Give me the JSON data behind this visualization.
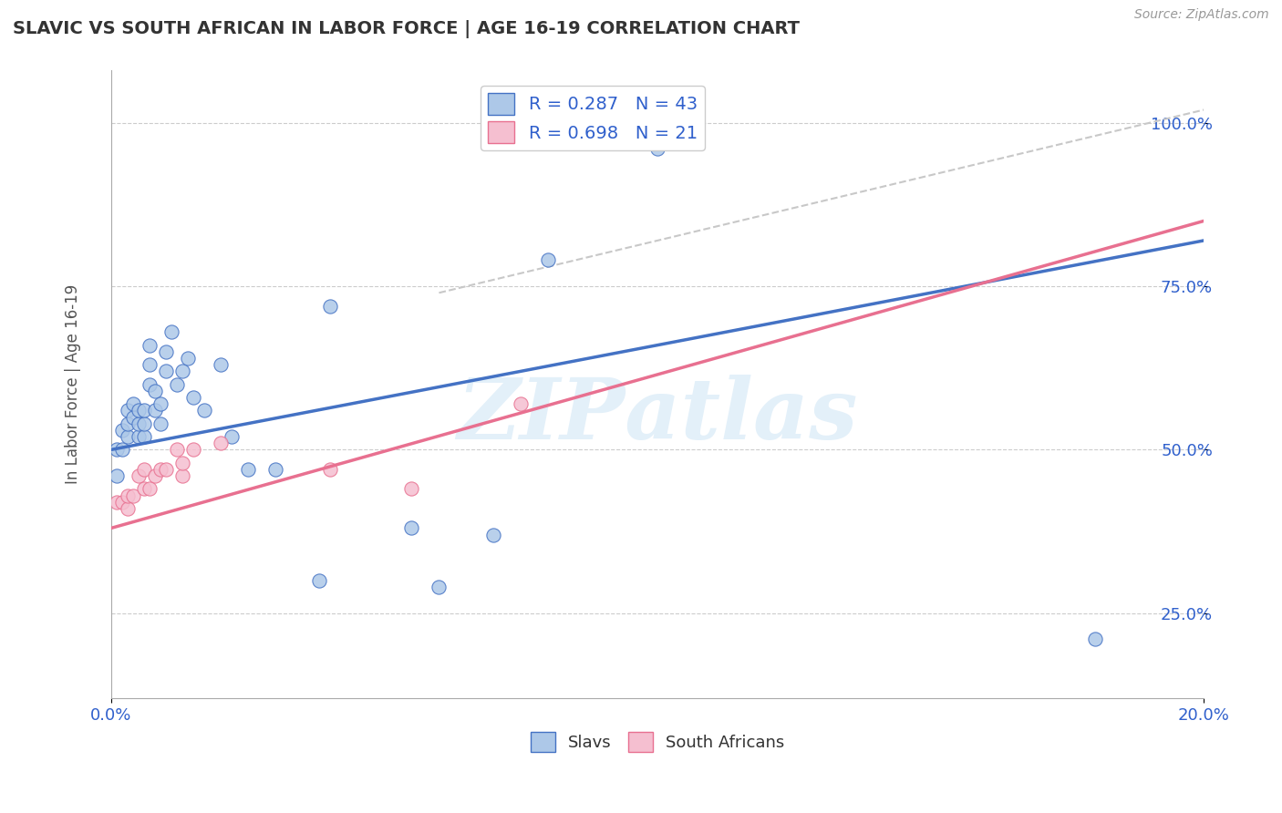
{
  "title": "SLAVIC VS SOUTH AFRICAN IN LABOR FORCE | AGE 16-19 CORRELATION CHART",
  "source": "Source: ZipAtlas.com",
  "xlabel": "",
  "ylabel": "In Labor Force | Age 16-19",
  "xlim": [
    0.0,
    0.2
  ],
  "ylim": [
    0.12,
    1.08
  ],
  "x_ticks": [
    0.0,
    0.2
  ],
  "x_tick_labels": [
    "0.0%",
    "20.0%"
  ],
  "y_ticks": [
    0.25,
    0.5,
    0.75,
    1.0
  ],
  "y_tick_labels": [
    "25.0%",
    "50.0%",
    "75.0%",
    "100.0%"
  ],
  "slavs_R": 0.287,
  "slavs_N": 43,
  "south_african_R": 0.698,
  "south_african_N": 21,
  "slavs_color": "#adc8e8",
  "south_african_color": "#f5bfd0",
  "slavs_line_color": "#4472c4",
  "south_african_line_color": "#e87090",
  "legend_text_color": "#3060cc",
  "background_color": "#ffffff",
  "slavs_x": [
    0.001,
    0.001,
    0.002,
    0.002,
    0.003,
    0.003,
    0.003,
    0.004,
    0.004,
    0.005,
    0.005,
    0.005,
    0.006,
    0.006,
    0.006,
    0.007,
    0.007,
    0.007,
    0.008,
    0.008,
    0.009,
    0.009,
    0.01,
    0.01,
    0.011,
    0.012,
    0.013,
    0.014,
    0.015,
    0.017,
    0.02,
    0.022,
    0.025,
    0.03,
    0.038,
    0.04,
    0.055,
    0.06,
    0.07,
    0.08,
    0.095,
    0.1,
    0.18
  ],
  "slavs_y": [
    0.46,
    0.5,
    0.5,
    0.53,
    0.52,
    0.54,
    0.56,
    0.55,
    0.57,
    0.52,
    0.54,
    0.56,
    0.52,
    0.54,
    0.56,
    0.6,
    0.63,
    0.66,
    0.56,
    0.59,
    0.54,
    0.57,
    0.62,
    0.65,
    0.68,
    0.6,
    0.62,
    0.64,
    0.58,
    0.56,
    0.63,
    0.52,
    0.47,
    0.47,
    0.3,
    0.72,
    0.38,
    0.29,
    0.37,
    0.79,
    0.99,
    0.96,
    0.21
  ],
  "south_african_x": [
    0.001,
    0.002,
    0.003,
    0.003,
    0.004,
    0.005,
    0.006,
    0.006,
    0.007,
    0.008,
    0.009,
    0.01,
    0.012,
    0.013,
    0.013,
    0.015,
    0.02,
    0.04,
    0.055,
    0.075,
    0.095
  ],
  "south_african_y": [
    0.42,
    0.42,
    0.41,
    0.43,
    0.43,
    0.46,
    0.44,
    0.47,
    0.44,
    0.46,
    0.47,
    0.47,
    0.5,
    0.46,
    0.48,
    0.5,
    0.51,
    0.47,
    0.44,
    0.57,
    0.99
  ],
  "slavs_trend_x0": 0.0,
  "slavs_trend_y0": 0.5,
  "slavs_trend_x1": 0.2,
  "slavs_trend_y1": 0.82,
  "sa_trend_x0": 0.0,
  "sa_trend_y0": 0.38,
  "sa_trend_x1": 0.2,
  "sa_trend_y1": 0.85,
  "ref_line_x": [
    0.06,
    0.2
  ],
  "ref_line_y": [
    0.74,
    1.02
  ]
}
